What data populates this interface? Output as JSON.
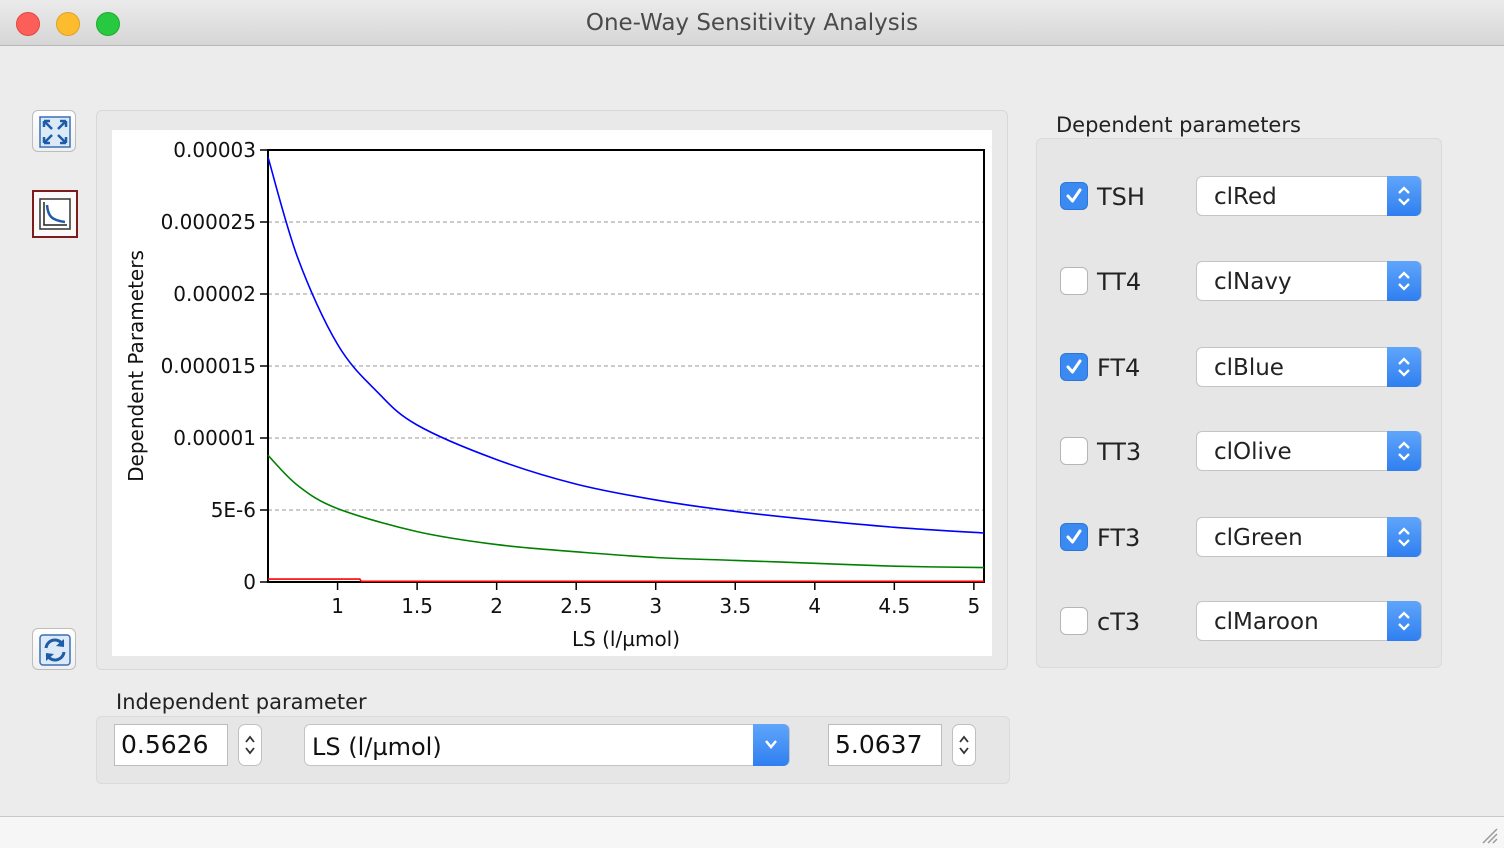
{
  "window": {
    "title": "One-Way Sensitivity Analysis"
  },
  "toolbar": {
    "fullscreen_icon": "expand-arrows-icon",
    "chart_icon": "chart-icon",
    "refresh_icon": "refresh-icon"
  },
  "dependent": {
    "title": "Dependent parameters",
    "items": [
      {
        "label": "TSH",
        "checked": true,
        "color_name": "clRed",
        "color": "#ff0000"
      },
      {
        "label": "TT4",
        "checked": false,
        "color_name": "clNavy",
        "color": "#000080"
      },
      {
        "label": "FT4",
        "checked": true,
        "color_name": "clBlue",
        "color": "#0000ff"
      },
      {
        "label": "TT3",
        "checked": false,
        "color_name": "clOlive",
        "color": "#808000"
      },
      {
        "label": "FT3",
        "checked": true,
        "color_name": "clGreen",
        "color": "#008000"
      },
      {
        "label": "cT3",
        "checked": false,
        "color_name": "clMaroon",
        "color": "#800000"
      }
    ]
  },
  "independent": {
    "title": "Independent parameter",
    "min": "0.5626",
    "param": "LS (l/µmol)",
    "max": "5.0637"
  },
  "chart_data": {
    "type": "line",
    "title": "",
    "xlabel": "LS (l/µmol)",
    "ylabel": "Dependent Parameters",
    "xlim": [
      0.5626,
      5.0637
    ],
    "ylim": [
      0,
      3e-05
    ],
    "x_ticks": [
      1,
      1.5,
      2,
      2.5,
      3,
      3.5,
      4,
      4.5,
      5
    ],
    "x_tick_labels": [
      "1",
      "1.5",
      "2",
      "2.5",
      "3",
      "3.5",
      "4",
      "4.5",
      "5"
    ],
    "y_ticks": [
      0,
      5e-06,
      1e-05,
      1.5e-05,
      2e-05,
      2.5e-05,
      3e-05
    ],
    "y_tick_labels": [
      "0",
      "5E-6",
      "0.00001",
      "0.000015",
      "0.00002",
      "0.000025",
      "0.00003"
    ],
    "grid": "horizontal dashed",
    "series": [
      {
        "color": "#0000ff",
        "x": [
          0.5626,
          0.75,
          1,
          1.25,
          1.5,
          2,
          2.5,
          3,
          3.5,
          4,
          4.5,
          5.0637
        ],
        "y": [
          2.95e-05,
          2.25e-05,
          1.65e-05,
          1.32e-05,
          1.09e-05,
          8.5e-06,
          6.8e-06,
          5.7e-06,
          4.9e-06,
          4.3e-06,
          3.8e-06,
          3.4e-06
        ]
      },
      {
        "color": "#008000",
        "x": [
          0.5626,
          0.75,
          1,
          1.5,
          2,
          2.5,
          3,
          3.5,
          4,
          4.5,
          5.0637
        ],
        "y": [
          8.8e-06,
          6.7e-06,
          5.1e-06,
          3.5e-06,
          2.6e-06,
          2.1e-06,
          1.7e-06,
          1.5e-06,
          1.3e-06,
          1.1e-06,
          1e-06
        ]
      },
      {
        "color": "#ff0000",
        "x": [
          0.5626,
          1.14,
          1.15,
          5.0637
        ],
        "y": [
          2e-07,
          2e-07,
          5e-08,
          5e-08
        ]
      }
    ]
  }
}
